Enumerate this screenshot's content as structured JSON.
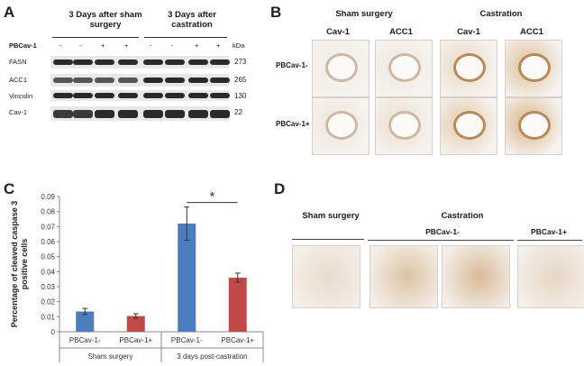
{
  "panels": {
    "a": "A",
    "b": "B",
    "c": "C",
    "d": "D"
  },
  "panel_a": {
    "group1": "3 Days after sham surgery",
    "group2": "3 Days after castration",
    "row_title": "PBCav-1",
    "kda_label": "kDa",
    "lane_signs": [
      "-",
      "-",
      "+",
      "+",
      "-",
      "-",
      "+",
      "+"
    ],
    "bands": [
      {
        "name": "FASN",
        "kda": "273"
      },
      {
        "name": "ACC1",
        "kda": "265"
      },
      {
        "name": "Vinculin",
        "kda": "130"
      },
      {
        "name": "Cav-1",
        "kda": "22"
      }
    ]
  },
  "panel_b": {
    "group1": "Sham surgery",
    "group2": "Castration",
    "col1": "Cav-1",
    "col2": "ACC1",
    "col3": "Cav-1",
    "col4": "ACC1",
    "row1": "PBCav-1-",
    "row2": "PBCav-1+"
  },
  "panel_d": {
    "col1": "Sham surgery",
    "col2": "Castration",
    "sub1": "PBCav-1-",
    "sub2": "PBCav-1+"
  },
  "chart_data": {
    "type": "bar",
    "ylabel": "Percentage of cleaved caspase 3 positive cells",
    "ylim": [
      0,
      0.09
    ],
    "yticks": [
      "0",
      "0.01",
      "0.02",
      "0.03",
      "0.04",
      "0.05",
      "0.06",
      "0.07",
      "0.08",
      "0.09"
    ],
    "categories": [
      "PBCav-1-",
      "PBCav-1+",
      "PBCav-1-",
      "PBCav-1+"
    ],
    "groups": [
      "Sham surgery",
      "3 days post-castration"
    ],
    "values": [
      0.0135,
      0.0105,
      0.072,
      0.036
    ],
    "errors": [
      0.002,
      0.0015,
      0.011,
      0.003
    ],
    "colors": [
      "#4a7ebb",
      "#be4b48",
      "#4a7ebb",
      "#be4b48"
    ],
    "significance": "*"
  }
}
